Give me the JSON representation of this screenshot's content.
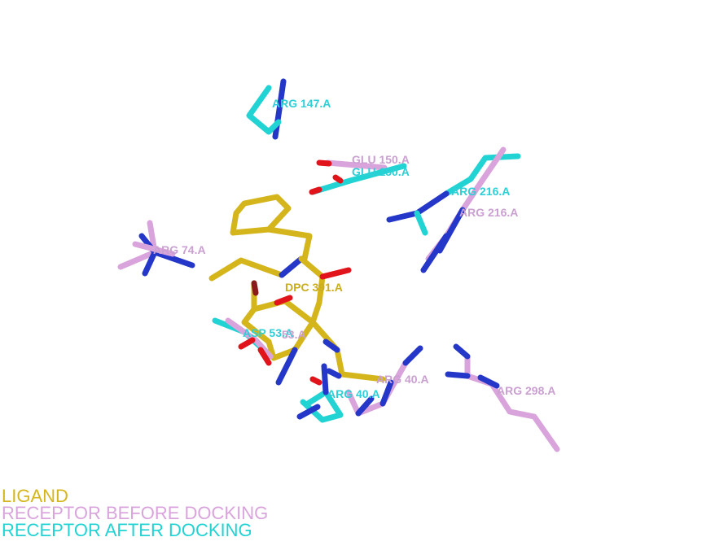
{
  "colors": {
    "ligand": "#d4b61c",
    "before": "#d9a4dc",
    "after": "#22d3d3",
    "nitrogen": "#2437c8",
    "oxygen": "#e0141a",
    "ligand_label": "#c9ad1a",
    "before_label": "#c9a0d0",
    "after_label": "#2ecfd6"
  },
  "residue_labels": {
    "arg147": "ARG 147.A",
    "glu150_before": "GLU 150.A",
    "glu150_after": "GLU 150.A",
    "arg216_after": "ARG 216.A",
    "arg216_before": "ARG 216.A",
    "arg74": "ARG 74.A",
    "dpc391": "DPC 391.A",
    "asp53_after": "ASP 53.A",
    "asp53_before": "53.A",
    "arg40_before": "ARG 40.A",
    "arg40_after": "ARG 40.A",
    "arg298": "ARG 298.A"
  },
  "legend": {
    "ligand": "LIGAND",
    "before": "RECEPTOR BEFORE DOCKING",
    "after": "RECEPTOR AFTER DOCKING"
  }
}
